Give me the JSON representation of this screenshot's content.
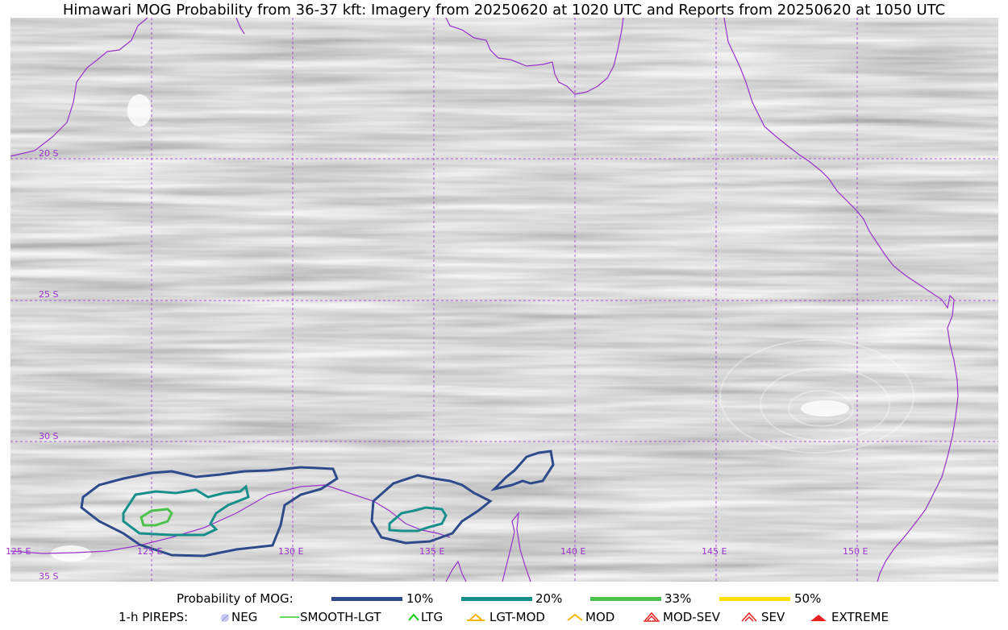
{
  "title": "Himawari MOG Probability from 36-37 kft: Imagery from 20250620 at 1020 UTC and Reports from 20250620 at 1050 UTC",
  "map": {
    "latitude_labels": [
      "20 S",
      "25 S",
      "30 S",
      "35 S"
    ],
    "longitude_labels": [
      "125 E",
      "125 E",
      "130 E",
      "135 E",
      "140 E",
      "145 E",
      "150 E"
    ],
    "colors": {
      "graticule": "#9933cc",
      "coastline": "#9933cc",
      "contour_10": "#2e4a8a",
      "contour_20": "#178f8a",
      "contour_33": "#4cc24c",
      "contour_50": "#ffe000"
    }
  },
  "legend": {
    "probability": {
      "label": "Probability of MOG:",
      "items": [
        {
          "label": "10%",
          "color": "#2e4a8a"
        },
        {
          "label": "20%",
          "color": "#178f8a"
        },
        {
          "label": "33%",
          "color": "#4cc24c"
        },
        {
          "label": "50%",
          "color": "#ffe000"
        }
      ]
    },
    "pireps": {
      "label": "1-h PIREPS:",
      "items": [
        {
          "label": "NEG",
          "icon": "neg-circle-icon",
          "color": "#c8c8f0"
        },
        {
          "label": "SMOOTH-LGT",
          "icon": "dash-icon",
          "color": "#33cc33"
        },
        {
          "label": "LTG",
          "icon": "caret-icon",
          "color": "#11cc11"
        },
        {
          "label": "LGT-MOD",
          "icon": "caret-bar-icon",
          "color": "#f5b400"
        },
        {
          "label": "MOD",
          "icon": "caret-icon",
          "color": "#f5b400"
        },
        {
          "label": "MOD-SEV",
          "icon": "double-caret-bar-icon",
          "color": "#e82020"
        },
        {
          "label": "SEV",
          "icon": "double-caret-icon",
          "color": "#e82020"
        },
        {
          "label": "EXTREME",
          "icon": "filled-caret-icon",
          "color": "#e82020"
        }
      ]
    }
  }
}
